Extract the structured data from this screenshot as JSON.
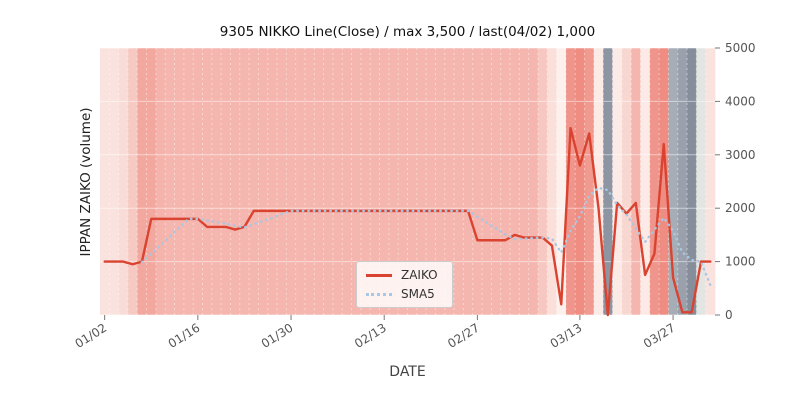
{
  "title": "9305 NIKKO Line(Close) / max 3,500 / last(04/02) 1,000",
  "axes": {
    "xlabel": "DATE",
    "ylabel": "IPPAN ZAIKO (volume)",
    "y_ticks": [
      0,
      1000,
      2000,
      3000,
      4000,
      5000
    ],
    "x_tick_labels": [
      "01/02",
      "01/16",
      "01/30",
      "02/13",
      "02/27",
      "03/13",
      "03/27"
    ]
  },
  "legend": {
    "items": [
      {
        "label": "ZAIKO",
        "color": "#d9432f",
        "style": "solid"
      },
      {
        "label": "SMA5",
        "color": "#a9c6e2",
        "style": "dotted"
      }
    ],
    "position": "lower center"
  },
  "colors": {
    "zaiko": "#d9432f",
    "sma5": "#a9c6e2",
    "plot_bg": "#e8e8e8",
    "tick_text": "#555555",
    "tick_mark": "#777777",
    "grid": "#ffffff"
  },
  "chart_data": {
    "type": "line",
    "title": "9305 NIKKO Line(Close) / max 3,500 / last(04/02) 1,000",
    "xlabel": "DATE",
    "ylabel": "IPPAN ZAIKO (volume)",
    "ylim": [
      0,
      5000
    ],
    "grid": true,
    "legend_position": "lower center",
    "x": [
      "01/02",
      "01/03",
      "01/06",
      "01/07",
      "01/08",
      "01/09",
      "01/10",
      "01/13",
      "01/14",
      "01/15",
      "01/16",
      "01/17",
      "01/20",
      "01/21",
      "01/22",
      "01/23",
      "01/24",
      "01/27",
      "01/28",
      "01/29",
      "01/30",
      "01/31",
      "02/03",
      "02/04",
      "02/05",
      "02/06",
      "02/07",
      "02/10",
      "02/11",
      "02/12",
      "02/13",
      "02/14",
      "02/17",
      "02/18",
      "02/19",
      "02/20",
      "02/21",
      "02/24",
      "02/25",
      "02/26",
      "02/27",
      "02/28",
      "03/02",
      "03/03",
      "03/04",
      "03/05",
      "03/06",
      "03/09",
      "03/10",
      "03/11",
      "03/12",
      "03/13",
      "03/16",
      "03/17",
      "03/18",
      "03/19",
      "03/20",
      "03/23",
      "03/24",
      "03/25",
      "03/26",
      "03/27",
      "03/30",
      "03/31",
      "04/01",
      "04/02"
    ],
    "x_ticks": [
      {
        "index": 0,
        "label": "01/02"
      },
      {
        "index": 10,
        "label": "01/16"
      },
      {
        "index": 20,
        "label": "01/30"
      },
      {
        "index": 30,
        "label": "02/13"
      },
      {
        "index": 40,
        "label": "02/27"
      },
      {
        "index": 51,
        "label": "03/13"
      },
      {
        "index": 61,
        "label": "03/27"
      }
    ],
    "series": [
      {
        "name": "ZAIKO",
        "values": [
          1000,
          1000,
          1000,
          950,
          1000,
          1800,
          1800,
          1800,
          1800,
          1800,
          1800,
          1650,
          1650,
          1650,
          1600,
          1650,
          1950,
          1950,
          1950,
          1950,
          1950,
          1950,
          1950,
          1950,
          1950,
          1950,
          1950,
          1950,
          1950,
          1950,
          1950,
          1950,
          1950,
          1950,
          1950,
          1950,
          1950,
          1950,
          1950,
          1950,
          1400,
          1400,
          1400,
          1400,
          1500,
          1450,
          1450,
          1450,
          1300,
          200,
          3500,
          2800,
          3400,
          2000,
          0,
          2100,
          1900,
          2100,
          750,
          1150,
          3200,
          700,
          50,
          50,
          1000,
          1000
        ]
      },
      {
        "name": "SMA5",
        "derived": "5-day moving average of ZAIKO",
        "window": 5
      }
    ],
    "band_colors": [
      "#fae3df",
      "#fae3df",
      "#f9dcd7",
      "#f6c9c2",
      "#f2a89f",
      "#f2a89f",
      "#f4b3ab",
      "#f4b6ae",
      "#f4b6ae",
      "#f4b6ae",
      "#f4b6ae",
      "#f4b6ae",
      "#f4b6ae",
      "#f4b6ae",
      "#f4b6ae",
      "#f4b6ae",
      "#f4b6ae",
      "#f4b6ae",
      "#f4b6ae",
      "#f4b6ae",
      "#f4b6ae",
      "#f4b6ae",
      "#f4b6ae",
      "#f4b6ae",
      "#f4b6ae",
      "#f4b6ae",
      "#f4b6ae",
      "#f4b6ae",
      "#f4b6ae",
      "#f4b6ae",
      "#f4b6ae",
      "#f4b6ae",
      "#f4b6ae",
      "#f4b6ae",
      "#f4b6ae",
      "#f4b6ae",
      "#f4b6ae",
      "#f4b6ae",
      "#f4b6ae",
      "#f4b6ae",
      "#f4b6ae",
      "#f4b6ae",
      "#f4b6ae",
      "#f4b6ae",
      "#f4b6ae",
      "#f4b6ae",
      "#f4b6ae",
      "#f7c8c1",
      "#fadfda",
      "#fdf1ee",
      "#ef958b",
      "#ef8d83",
      "#f09a90",
      "#fceae6",
      "#8d95a2",
      "#fceae6",
      "#f9d7d1",
      "#f4b6ae",
      "#fceae6",
      "#ef958b",
      "#ef8d83",
      "#a7adb6",
      "#9aa1ad",
      "#868e9b",
      "#e3e5e2",
      "#fae3df"
    ]
  }
}
